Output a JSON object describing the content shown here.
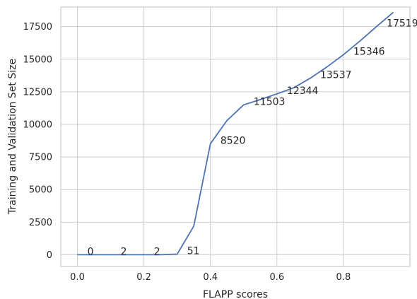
{
  "chart_data": {
    "type": "line",
    "xlabel": "FLAPP scores",
    "ylabel": "Training and Validation Set Size",
    "xlim": [
      -0.05,
      1.0
    ],
    "ylim": [
      -900,
      19000
    ],
    "xticks": [
      0.0,
      0.2,
      0.4,
      0.6,
      0.8
    ],
    "xtick_labels": [
      "0.0",
      "0.2",
      "0.4",
      "0.6",
      "0.8"
    ],
    "yticks": [
      0,
      2500,
      5000,
      7500,
      10000,
      12500,
      15000,
      17500
    ],
    "ytick_labels": [
      "0",
      "2500",
      "5000",
      "7500",
      "10000",
      "12500",
      "15000",
      "17500"
    ],
    "grid": true,
    "series": [
      {
        "color": "#4c72b0",
        "x": [
          0.0,
          0.05,
          0.1,
          0.15,
          0.2,
          0.25,
          0.3,
          0.35,
          0.4,
          0.45,
          0.5,
          0.55,
          0.6,
          0.65,
          0.7,
          0.75,
          0.8,
          0.85,
          0.9,
          0.95
        ],
        "y": [
          0,
          0,
          2,
          2,
          2,
          2,
          51,
          2200,
          8520,
          10300,
          11503,
          11900,
          12344,
          12800,
          13537,
          14400,
          15346,
          16400,
          17519,
          18600
        ]
      }
    ],
    "annotations": [
      {
        "text": "0",
        "x": 0.03,
        "y": 0
      },
      {
        "text": "2",
        "x": 0.13,
        "y": 0
      },
      {
        "text": "2",
        "x": 0.23,
        "y": 0
      },
      {
        "text": "51",
        "x": 0.33,
        "y": 51
      },
      {
        "text": "8520",
        "x": 0.43,
        "y": 8520
      },
      {
        "text": "11503",
        "x": 0.53,
        "y": 11503
      },
      {
        "text": "12344",
        "x": 0.63,
        "y": 12344
      },
      {
        "text": "13537",
        "x": 0.73,
        "y": 13537
      },
      {
        "text": "15346",
        "x": 0.83,
        "y": 15346
      },
      {
        "text": "17519",
        "x": 0.93,
        "y": 17519
      }
    ]
  }
}
